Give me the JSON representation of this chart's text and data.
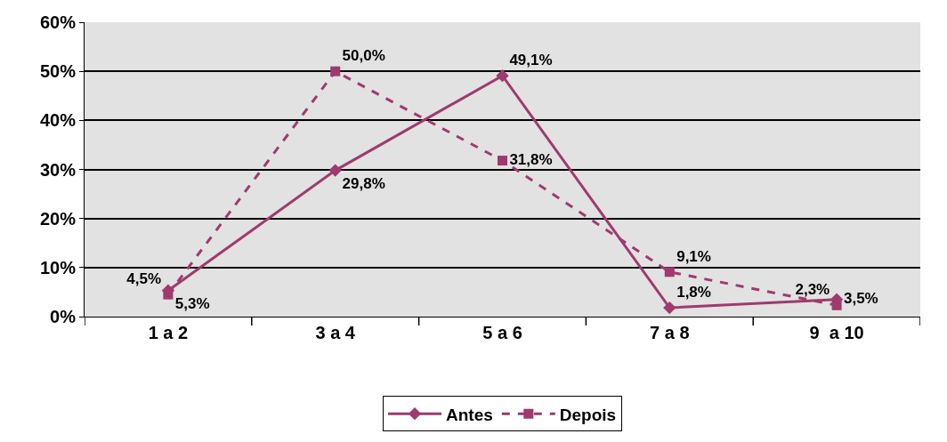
{
  "chart_data": {
    "type": "line",
    "categories": [
      "1 a 2",
      "3 a 4",
      "5 a 6",
      "7 a 8",
      "9  a 10"
    ],
    "series": [
      {
        "name": "Antes",
        "color": "#9e3a6e",
        "values": [
          5.3,
          29.8,
          49.1,
          1.8,
          3.5
        ],
        "value_labels": [
          "5,3%",
          "29,8%",
          "49,1%",
          "1,8%",
          "3,5%"
        ],
        "marker": "diamond",
        "line_style": "solid"
      },
      {
        "name": "Depois",
        "color": "#9e3a6e",
        "values": [
          4.5,
          50.0,
          31.8,
          9.1,
          2.3
        ],
        "value_labels": [
          "4,5%",
          "50,0%",
          "31,8%",
          "9,1%",
          "2,3%"
        ],
        "marker": "square",
        "line_style": "dashed"
      }
    ],
    "ylim": [
      0,
      60
    ],
    "yticks": [
      {
        "value": 0,
        "label": "0%"
      },
      {
        "value": 10,
        "label": "10%"
      },
      {
        "value": 20,
        "label": "20%"
      },
      {
        "value": 30,
        "label": "30%"
      },
      {
        "value": 40,
        "label": "40%"
      },
      {
        "value": 50,
        "label": "50%"
      },
      {
        "value": 60,
        "label": "60%"
      }
    ],
    "grid": "y",
    "legend": "bottom"
  }
}
